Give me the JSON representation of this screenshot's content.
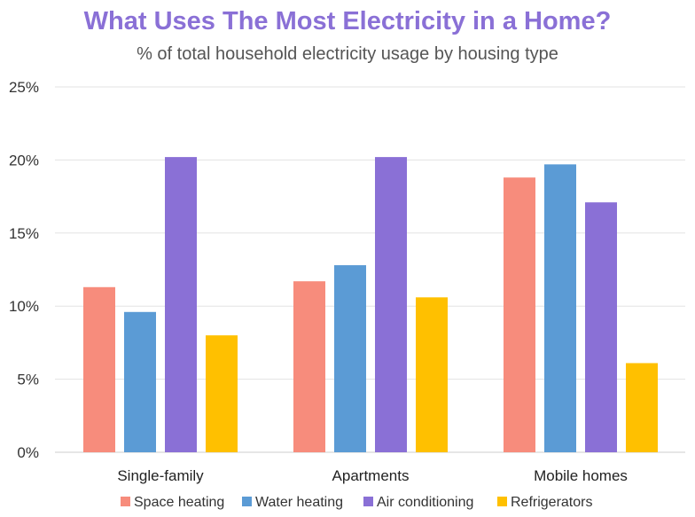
{
  "chart_data": {
    "type": "bar",
    "title": "What Uses The Most Electricity in a Home?",
    "subtitle": "% of total household electricity usage by housing type",
    "xlabel": "",
    "ylabel": "",
    "ylim": [
      0,
      25
    ],
    "yticks": [
      "0%",
      "5%",
      "10%",
      "15%",
      "20%",
      "25%"
    ],
    "ytick_values": [
      0,
      5,
      10,
      15,
      20,
      25
    ],
    "grid": true,
    "legend_position": "bottom",
    "categories": [
      "Single-family",
      "Apartments",
      "Mobile homes"
    ],
    "series": [
      {
        "name": "Space heating",
        "color": "#f78c7c",
        "values": [
          11.3,
          11.7,
          18.8
        ]
      },
      {
        "name": "Water heating",
        "color": "#5b9bd5",
        "values": [
          9.6,
          12.8,
          19.7
        ]
      },
      {
        "name": "Air conditioning",
        "color": "#8a70d6",
        "values": [
          20.2,
          20.2,
          17.1
        ]
      },
      {
        "name": "Refrigerators",
        "color": "#ffc000",
        "values": [
          8.0,
          10.6,
          6.1
        ]
      }
    ]
  }
}
